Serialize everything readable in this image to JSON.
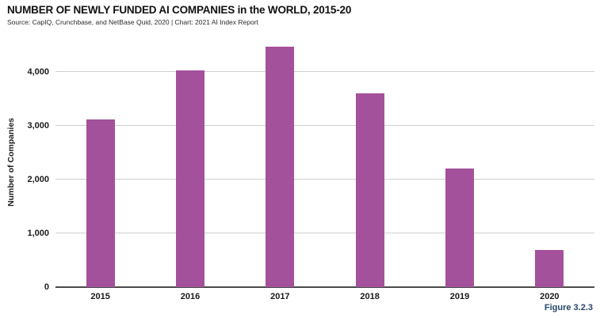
{
  "header": {
    "title": "NUMBER OF NEWLY FUNDED AI COMPANIES in the WORLD, 2015-20",
    "source": "Source: CapIQ, Crunchbase, and NetBase Quid, 2020 | Chart: 2021 AI Index Report"
  },
  "footer": {
    "figure_label": "Figure 3.2.3"
  },
  "colors": {
    "bar": "#a4519c",
    "gridline": "#cfcfcf",
    "axis_line": "#4a4a4a",
    "text": "#1a1a1a",
    "figure_label": "#25456b"
  },
  "chart_data": {
    "type": "bar",
    "title": "NUMBER OF NEWLY FUNDED AI COMPANIES in the WORLD, 2015-20",
    "categories": [
      "2015",
      "2016",
      "2017",
      "2018",
      "2019",
      "2020"
    ],
    "values": [
      3120,
      4020,
      4470,
      3600,
      2200,
      690
    ],
    "xlabel": "",
    "ylabel": "Number of Companies",
    "ylim": [
      0,
      4600
    ],
    "yticks": [
      0,
      1000,
      2000,
      3000,
      4000
    ],
    "ytick_labels": [
      "0",
      "1,000",
      "2,000",
      "3,000",
      "4,000"
    ],
    "grid": true,
    "legend": false
  }
}
